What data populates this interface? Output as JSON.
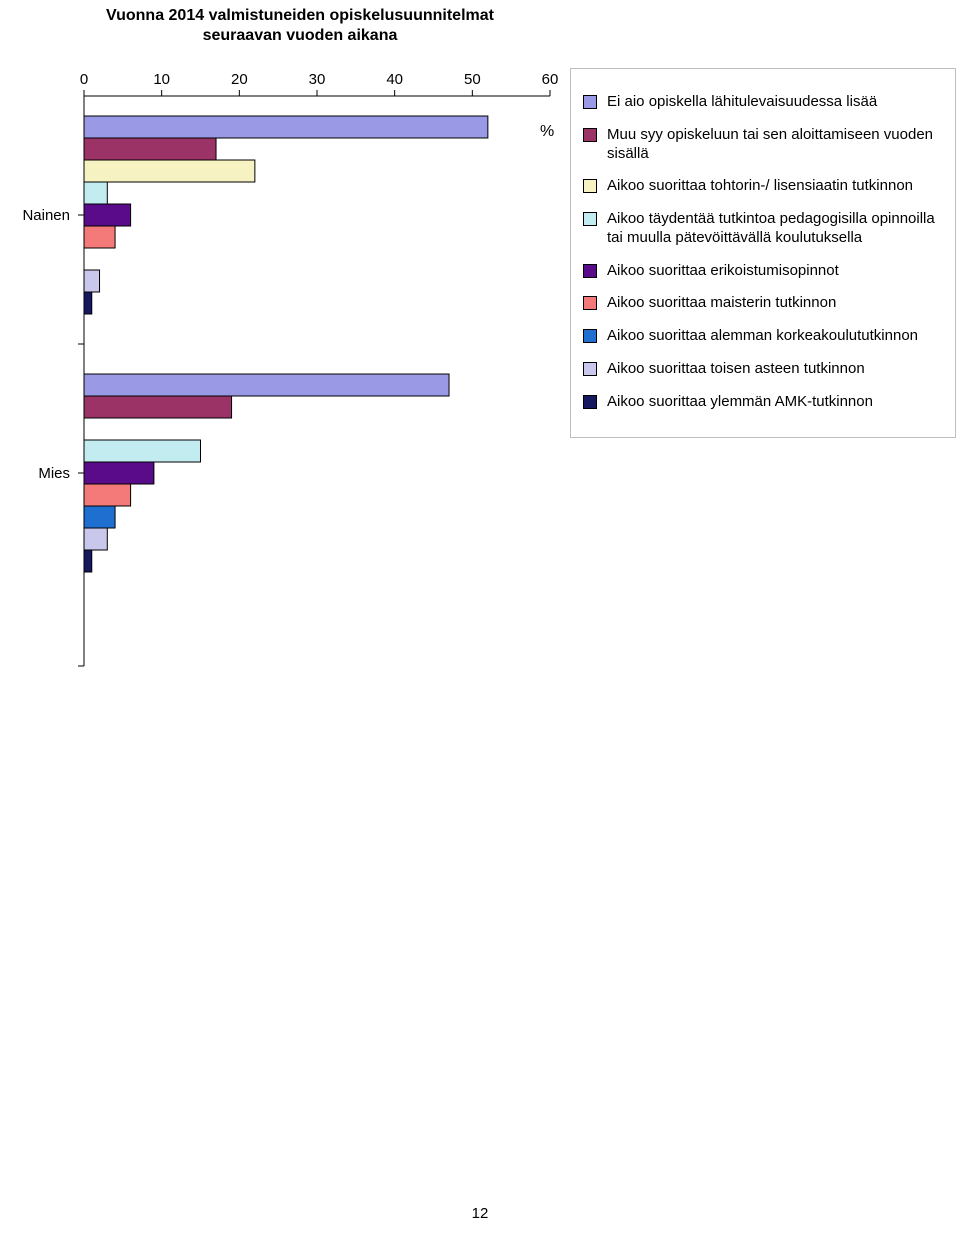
{
  "title_line1": "Vuonna 2014 valmistuneiden opiskelusuunnitelmat",
  "title_line2": "seuraavan vuoden aikana",
  "footer_page": "12",
  "chart": {
    "type": "bar-horizontal",
    "background_color": "#ffffff",
    "plot_border": "#000000",
    "tick_color": "#000000",
    "axis_fontsize": 15,
    "title_fontsize": 16,
    "y_symbol": "%",
    "xlim": [
      0,
      60
    ],
    "xticks": [
      0,
      10,
      20,
      30,
      40,
      50,
      60
    ],
    "categories": [
      "Nainen",
      "Mies"
    ],
    "series": [
      {
        "label": "Ei aio opiskella lähitulevaisuudessa lisää",
        "color": "#9999e6",
        "values": [
          52,
          47
        ]
      },
      {
        "label": "Muu syy opiskeluun tai sen aloittamiseen vuoden sisällä",
        "color": "#9b3366",
        "values": [
          17,
          19
        ]
      },
      {
        "label": "Aikoo suorittaa tohtorin-/ lisensiaatin tutkinnon",
        "color": "#f7f2c2",
        "values": [
          22,
          0
        ]
      },
      {
        "label": "Aikoo täydentää tutkintoa pedagogisilla opinnoilla tai muulla pätevöittävällä koulutuksella",
        "color": "#c2ecf0",
        "values": [
          3,
          15
        ]
      },
      {
        "label": "Aikoo suorittaa erikoistumisopinnot",
        "color": "#5a0b8a",
        "values": [
          6,
          9
        ]
      },
      {
        "label": "Aikoo suorittaa maisterin tutkinnon",
        "color": "#f47a7a",
        "values": [
          4,
          6
        ]
      },
      {
        "label": "Aikoo suorittaa alemman korkeakoulututkinnon",
        "color": "#1f6fd1",
        "values": [
          0,
          4
        ]
      },
      {
        "label": "Aikoo suorittaa toisen asteen tutkinnon",
        "color": "#c9c8ec",
        "values": [
          2,
          3
        ]
      },
      {
        "label": "Aikoo suorittaa ylemmän AMK-tutkinnon",
        "color": "#17195f",
        "values": [
          1,
          1
        ]
      }
    ],
    "legend_border": "#bfbfbf"
  }
}
